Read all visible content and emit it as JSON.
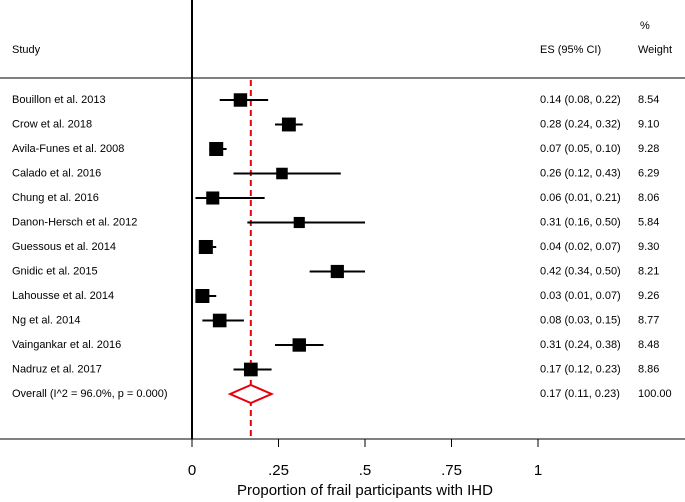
{
  "chart_data": {
    "type": "forest",
    "study_header": "Study",
    "es_header": "ES (95% CI)",
    "weight_header_top": "%",
    "weight_header": "Weight",
    "x_label": "Proportion of frail participants with IHD",
    "studies": [
      "Bouillon et al. 2013",
      "Crow et al. 2018",
      "Avila-Funes et al. 2008",
      "Calado et al. 2016",
      "Chung et al. 2016",
      "Danon-Hersch et al. 2012",
      "Guessous et al. 2014",
      "Gnidic et al. 2015",
      "Lahousse et al. 2014",
      "Ng et al. 2014",
      "Vaingankar et al. 2016",
      "Nadruz et al. 2017"
    ],
    "es": [
      0.14,
      0.28,
      0.07,
      0.26,
      0.06,
      0.31,
      0.04,
      0.42,
      0.03,
      0.08,
      0.31,
      0.17
    ],
    "lower": [
      0.08,
      0.24,
      0.05,
      0.12,
      0.01,
      0.16,
      0.02,
      0.34,
      0.01,
      0.03,
      0.24,
      0.12
    ],
    "upper": [
      0.22,
      0.32,
      0.1,
      0.43,
      0.21,
      0.5,
      0.07,
      0.5,
      0.07,
      0.15,
      0.38,
      0.23
    ],
    "weights": [
      8.54,
      9.1,
      9.28,
      6.29,
      8.06,
      5.84,
      9.3,
      8.21,
      9.26,
      8.77,
      8.48,
      8.86
    ],
    "es_labels": [
      "0.14 (0.08, 0.22)",
      "0.28 (0.24, 0.32)",
      "0.07 (0.05, 0.10)",
      "0.26 (0.12, 0.43)",
      "0.06 (0.01, 0.21)",
      "0.31 (0.16, 0.50)",
      "0.04 (0.02, 0.07)",
      "0.42 (0.34, 0.50)",
      "0.03 (0.01, 0.07)",
      "0.08 (0.03, 0.15)",
      "0.31 (0.24, 0.38)",
      "0.17 (0.12, 0.23)"
    ],
    "weight_labels": [
      "8.54",
      "9.10",
      "9.28",
      "6.29",
      "8.06",
      "5.84",
      "9.30",
      "8.21",
      "9.26",
      "8.77",
      "8.48",
      "8.86"
    ],
    "overall": {
      "label": "Overall  (I^2 = 96.0%, p = 0.000)",
      "es": 0.17,
      "lower": 0.11,
      "upper": 0.23,
      "es_label": "0.17 (0.11, 0.23)",
      "weight_label": "100.00"
    },
    "color": "#000000",
    "overall_color": "#e8000b",
    "xlim": [
      0,
      1
    ],
    "xticks": [
      0,
      {
        "value": 0.25,
        "label": ".25"
      },
      {
        "value": 0.5,
        "label": ".5"
      },
      {
        "value": 0.75,
        "label": ".75"
      },
      1
    ]
  }
}
